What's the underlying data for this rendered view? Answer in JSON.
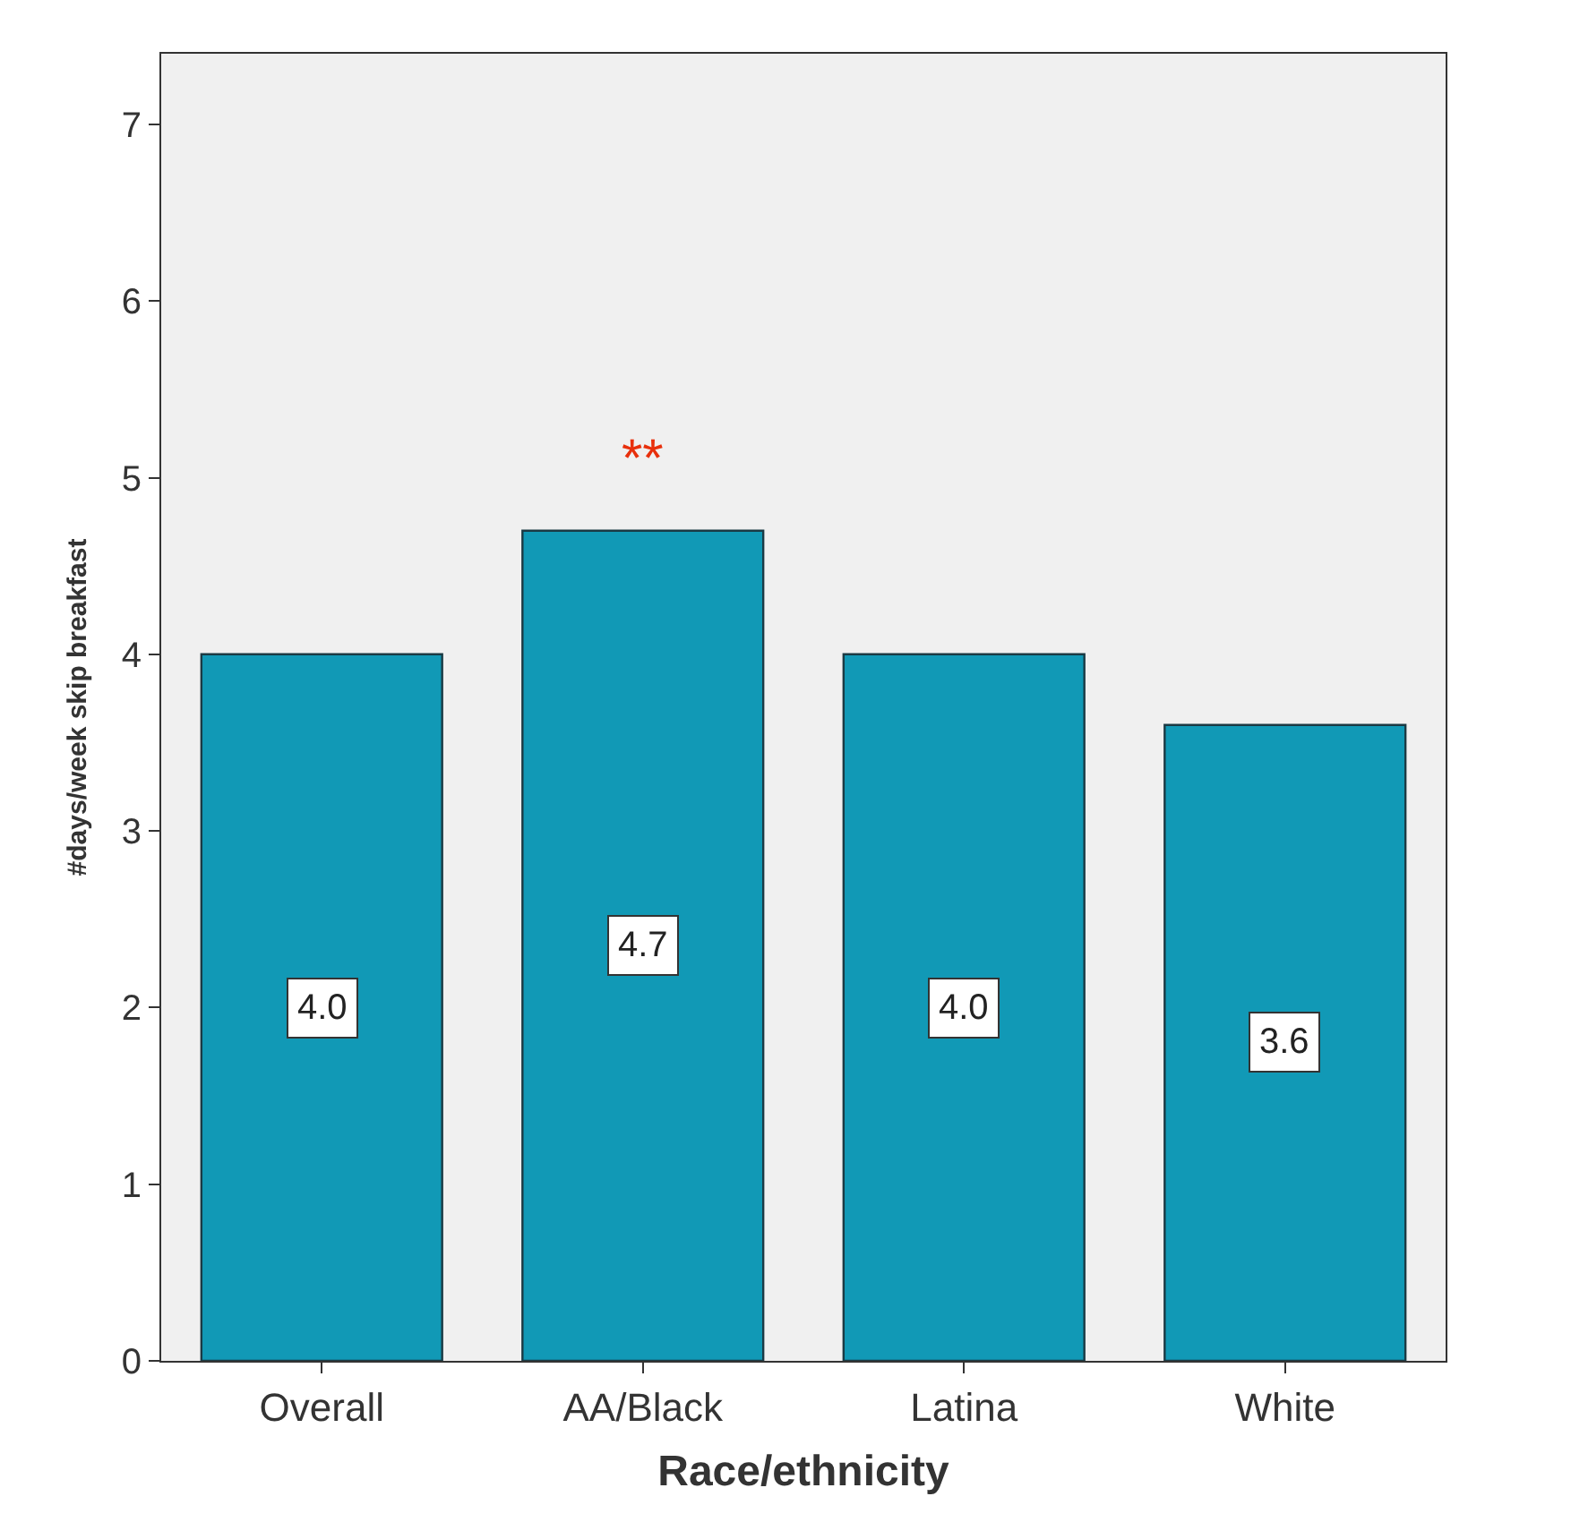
{
  "chart_data": {
    "type": "bar",
    "xlabel": "Race/ethnicity",
    "ylabel": "#days/week skip breakfast",
    "categories": [
      "Overall",
      "AA/Black",
      "Latina",
      "White"
    ],
    "values": [
      4.0,
      4.7,
      4.0,
      3.6
    ],
    "value_labels": [
      "4.0",
      "4.7",
      "4.0",
      "3.6"
    ],
    "color": "#1199b6",
    "ylim": [
      0,
      7.4
    ],
    "yticks": [
      0,
      1,
      2,
      3,
      4,
      5,
      6,
      7
    ],
    "grid": false,
    "annotations": [
      "**"
    ]
  }
}
